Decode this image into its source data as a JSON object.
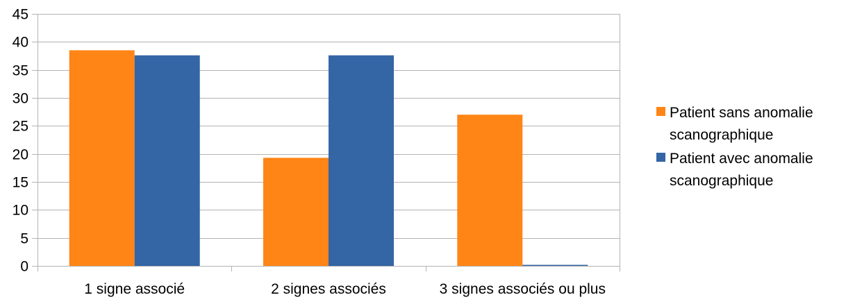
{
  "chart_data": {
    "type": "bar",
    "categories": [
      "1 signe associé",
      "2 signes associés",
      "3 signes associés ou plus"
    ],
    "series": [
      {
        "name": "Patient sans anomalie scanographique",
        "name_lines": [
          "Patient sans anomalie",
          "scanographique"
        ],
        "color": "#ff8517",
        "values": [
          38.5,
          19.3,
          27
        ]
      },
      {
        "name": "Patient avec anomalie scanographique",
        "name_lines": [
          "Patient avec anomalie",
          "scanographique"
        ],
        "color": "#3465a4",
        "values": [
          37.6,
          37.6,
          0
        ]
      }
    ],
    "ylim": [
      0,
      45
    ],
    "yticks": [
      "0",
      "5",
      "10",
      "15",
      "20",
      "25",
      "30",
      "35",
      "40",
      "45"
    ],
    "ytick_values": [
      0,
      5,
      10,
      15,
      20,
      25,
      30,
      35,
      40,
      45
    ],
    "grid": true,
    "legend_position": "right",
    "title": "",
    "xlabel": "",
    "ylabel": ""
  }
}
